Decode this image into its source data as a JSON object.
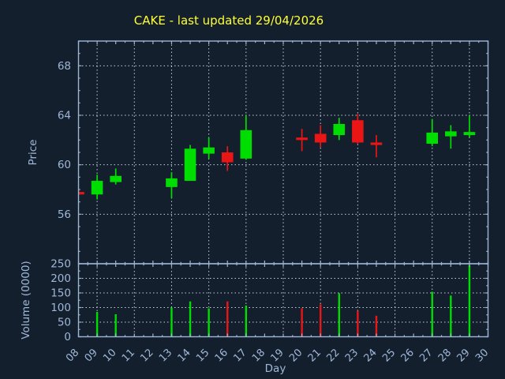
{
  "title": "CAKE - last updated 29/04/2026",
  "colors": {
    "background": "#141f2e",
    "frame": "#9db6d6",
    "grid": "#c2cedd",
    "text": "#9fb8d8",
    "title": "#ffff33",
    "up": "#00dd00",
    "down": "#ea1515"
  },
  "chart_data": {
    "type": "candlestick",
    "title": "CAKE - last updated 29/04/2026",
    "xlabel": "Day",
    "price_axis": {
      "label": "Price",
      "ticks": [
        56,
        60,
        64,
        68
      ],
      "range": [
        52,
        70
      ]
    },
    "volume_axis": {
      "label": "Volume (0000)",
      "ticks": [
        0,
        50,
        100,
        150,
        200,
        250
      ],
      "range": [
        0,
        250
      ]
    },
    "x_axis": {
      "first_day": 8,
      "last_day": 30,
      "tick_labels": [
        "08",
        "09",
        "10",
        "11",
        "12",
        "13",
        "14",
        "15",
        "16",
        "17",
        "18",
        "19",
        "20",
        "21",
        "22",
        "23",
        "24",
        "25",
        "26",
        "27",
        "28",
        "29",
        "30"
      ],
      "grid_days": [
        9,
        11,
        13,
        15,
        17,
        19,
        21,
        23,
        25,
        27,
        29
      ]
    },
    "grid": true,
    "candles": [
      {
        "day": 8,
        "open": 57.8,
        "high": 57.85,
        "low": 57.55,
        "close": 57.6,
        "volume": 0
      },
      {
        "day": 9,
        "open": 57.6,
        "high": 59.2,
        "low": 57.2,
        "close": 58.7,
        "volume": 85
      },
      {
        "day": 10,
        "open": 58.6,
        "high": 59.7,
        "low": 58.4,
        "close": 59.1,
        "volume": 77
      },
      {
        "day": 13,
        "open": 58.2,
        "high": 59.4,
        "low": 57.3,
        "close": 58.9,
        "volume": 100
      },
      {
        "day": 14,
        "open": 58.7,
        "high": 61.6,
        "low": 58.7,
        "close": 61.3,
        "volume": 121
      },
      {
        "day": 15,
        "open": 60.9,
        "high": 62.2,
        "low": 60.5,
        "close": 61.4,
        "volume": 97
      },
      {
        "day": 16,
        "open": 61.0,
        "high": 61.5,
        "low": 59.5,
        "close": 60.2,
        "volume": 121
      },
      {
        "day": 17,
        "open": 60.5,
        "high": 64.0,
        "low": 60.4,
        "close": 62.8,
        "volume": 107
      },
      {
        "day": 20,
        "open": 62.2,
        "high": 62.9,
        "low": 61.1,
        "close": 62.0,
        "volume": 98
      },
      {
        "day": 21,
        "open": 62.5,
        "high": 63.2,
        "low": 61.4,
        "close": 61.8,
        "volume": 111
      },
      {
        "day": 22,
        "open": 62.4,
        "high": 63.8,
        "low": 62.0,
        "close": 63.3,
        "volume": 149
      },
      {
        "day": 23,
        "open": 63.6,
        "high": 64.1,
        "low": 61.7,
        "close": 61.8,
        "volume": 89
      },
      {
        "day": 24,
        "open": 61.8,
        "high": 62.4,
        "low": 60.6,
        "close": 61.6,
        "volume": 72
      },
      {
        "day": 27,
        "open": 61.7,
        "high": 63.7,
        "low": 61.5,
        "close": 62.6,
        "volume": 154
      },
      {
        "day": 28,
        "open": 62.3,
        "high": 63.2,
        "low": 61.3,
        "close": 62.7,
        "volume": 141
      },
      {
        "day": 29,
        "open": 62.4,
        "high": 64.0,
        "low": 62.2,
        "close": 62.65,
        "volume": 245
      }
    ]
  }
}
